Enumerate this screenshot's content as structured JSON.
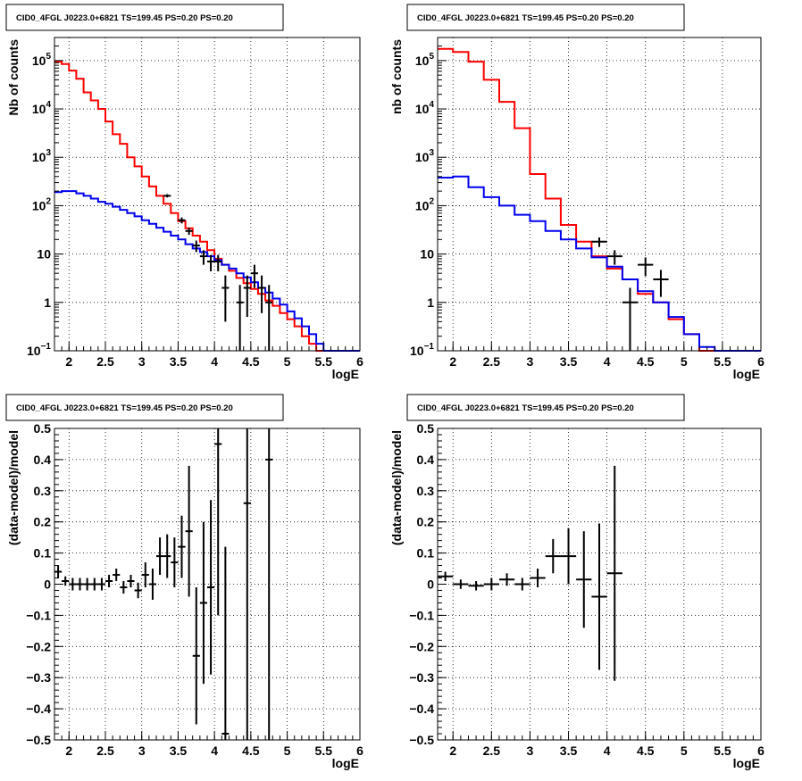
{
  "chart_data": [
    {
      "type": "histogram",
      "title": "CID0_4FGL J0223.0+6821 TS=199.45 PS=0.20 PS=0.20",
      "xlabel": "logE",
      "ylabel": "Nb of counts",
      "xlim": [
        1.8,
        6.0
      ],
      "ylim": [
        0.1,
        300000
      ],
      "yscale": "log",
      "grid": true,
      "xticks": [
        "2",
        "2.5",
        "3",
        "3.5",
        "4",
        "4.5",
        "5",
        "5.5",
        "6"
      ],
      "yticks": [
        {
          "value": 0.1,
          "base": "10",
          "exp": "−1"
        },
        {
          "value": 1,
          "base": "1",
          "exp": ""
        },
        {
          "value": 10,
          "base": "10",
          "exp": ""
        },
        {
          "value": 100,
          "base": "10",
          "exp": "2"
        },
        {
          "value": 1000,
          "base": "10",
          "exp": "3"
        },
        {
          "value": 10000,
          "base": "10",
          "exp": "4"
        },
        {
          "value": 100000,
          "base": "10",
          "exp": "5"
        }
      ],
      "bin_edges": [
        1.8,
        1.9,
        2.0,
        2.1,
        2.2,
        2.3,
        2.4,
        2.5,
        2.6,
        2.7,
        2.8,
        2.9,
        3.0,
        3.1,
        3.2,
        3.3,
        3.4,
        3.5,
        3.6,
        3.7,
        3.8,
        3.9,
        4.0,
        4.1,
        4.2,
        4.3,
        4.4,
        4.5,
        4.6,
        4.7,
        4.8,
        4.9,
        5.0,
        5.1,
        5.2,
        5.3,
        5.4,
        5.5,
        5.6,
        5.7,
        5.8,
        5.9,
        6.0
      ],
      "series": [
        {
          "color": "#ff0000",
          "values": [
            95000,
            85000,
            62000,
            42000,
            22000,
            15000,
            10000,
            5500,
            3000,
            1900,
            1000,
            650,
            400,
            250,
            160,
            110,
            70,
            48,
            34,
            24,
            18,
            12,
            8,
            6,
            4.5,
            3.2,
            2.5,
            1.9,
            1.5,
            1.1,
            0.85,
            0.6,
            0.45,
            0.32,
            0.2,
            0.14,
            0.1,
            0.1,
            0.1,
            0.1,
            0.1,
            0.1
          ]
        },
        {
          "color": "#0000ee",
          "values": [
            190,
            200,
            200,
            180,
            160,
            140,
            120,
            110,
            95,
            82,
            70,
            60,
            50,
            42,
            35,
            29,
            24,
            20,
            16,
            13,
            11,
            9,
            7.5,
            6,
            5,
            4,
            3.3,
            2.6,
            2,
            1.6,
            1.2,
            0.9,
            0.65,
            0.47,
            0.32,
            0.22,
            0.14,
            0.1,
            0.1,
            0.1,
            0.1,
            0.1
          ]
        }
      ],
      "points": [
        {
          "x": 3.35,
          "y": 160,
          "yerr": [
            12,
            12
          ]
        },
        {
          "x": 3.55,
          "y": 50,
          "yerr": [
            7,
            7
          ]
        },
        {
          "x": 3.65,
          "y": 30,
          "yerr": [
            5,
            5
          ]
        },
        {
          "x": 3.75,
          "y": 15,
          "yerr": [
            4,
            4
          ]
        },
        {
          "x": 3.85,
          "y": 9,
          "yerr": [
            3,
            3
          ]
        },
        {
          "x": 3.95,
          "y": 7,
          "yerr": [
            2.6,
            2.6
          ]
        },
        {
          "x": 4.05,
          "y": 7,
          "yerr": [
            2.6,
            2.6
          ]
        },
        {
          "x": 4.15,
          "y": 2,
          "yerr": [
            1.6,
            1.6
          ]
        },
        {
          "x": 4.35,
          "y": 1,
          "yerr": [
            0.9,
            1.3
          ]
        },
        {
          "x": 4.45,
          "y": 2,
          "yerr": [
            1.5,
            1.6
          ]
        },
        {
          "x": 4.55,
          "y": 4,
          "yerr": [
            2,
            2
          ]
        },
        {
          "x": 4.65,
          "y": 2,
          "yerr": [
            1.4,
            1.6
          ]
        },
        {
          "x": 4.75,
          "y": 1,
          "yerr": [
            0.9,
            1.3
          ]
        }
      ]
    },
    {
      "type": "histogram",
      "title": "CID0_4FGL J0223.0+6821 TS=199.45 PS=0.20 PS=0.20",
      "xlabel": "logE",
      "ylabel": "nb of counts",
      "xlim": [
        1.8,
        6.0
      ],
      "ylim": [
        0.1,
        300000
      ],
      "yscale": "log",
      "grid": true,
      "xticks": [
        "2",
        "2.5",
        "3",
        "3.5",
        "4",
        "4.5",
        "5",
        "5.5",
        "6"
      ],
      "yticks": [
        {
          "value": 0.1,
          "base": "10",
          "exp": "−1"
        },
        {
          "value": 1,
          "base": "1",
          "exp": ""
        },
        {
          "value": 10,
          "base": "10",
          "exp": ""
        },
        {
          "value": 100,
          "base": "10",
          "exp": "2"
        },
        {
          "value": 1000,
          "base": "10",
          "exp": "3"
        },
        {
          "value": 10000,
          "base": "10",
          "exp": "4"
        },
        {
          "value": 100000,
          "base": "10",
          "exp": "5"
        }
      ],
      "bin_edges": [
        1.8,
        2.0,
        2.2,
        2.4,
        2.6,
        2.8,
        3.0,
        3.2,
        3.4,
        3.6,
        3.8,
        4.0,
        4.2,
        4.4,
        4.6,
        4.8,
        5.0,
        5.2,
        5.4,
        5.6,
        5.8,
        6.0
      ],
      "series": [
        {
          "color": "#ff0000",
          "values": [
            175000,
            150000,
            95000,
            40000,
            14000,
            4000,
            450,
            140,
            40,
            18,
            9,
            5,
            3,
            1.5,
            1.0,
            0.45,
            0.22,
            0.1,
            0.1,
            0.1,
            0.1
          ]
        },
        {
          "color": "#0000ee",
          "values": [
            380,
            400,
            240,
            150,
            100,
            65,
            48,
            30,
            20,
            13,
            8.5,
            5.5,
            3,
            1.7,
            1.0,
            0.5,
            0.22,
            0.12,
            0.1,
            0.1,
            0.1
          ]
        }
      ],
      "points": [
        {
          "x": 3.9,
          "y": 18,
          "yerr": [
            4,
            4
          ]
        },
        {
          "x": 4.1,
          "y": 9,
          "yerr": [
            3,
            3
          ]
        },
        {
          "x": 4.3,
          "y": 1,
          "yerr": [
            0.9,
            1.0
          ]
        },
        {
          "x": 4.5,
          "y": 6,
          "yerr": [
            2.5,
            2.5
          ]
        },
        {
          "x": 4.7,
          "y": 3,
          "yerr": [
            1.7,
            1.7
          ]
        }
      ]
    },
    {
      "type": "scatter",
      "title": "CID0_4FGL J0223.0+6821 TS=199.45 PS=0.20 PS=0.20",
      "xlabel": "logE",
      "ylabel": "(data-model)/model",
      "xlim": [
        1.8,
        6.0
      ],
      "ylim": [
        -0.5,
        0.5
      ],
      "yscale": "linear",
      "grid": true,
      "xticks": [
        "2",
        "2.5",
        "3",
        "3.5",
        "4",
        "4.5",
        "5",
        "5.5",
        "6"
      ],
      "yticks": [
        {
          "value": -0.5,
          "label": "−0.5"
        },
        {
          "value": -0.4,
          "label": "−0.4"
        },
        {
          "value": -0.3,
          "label": "−0.3"
        },
        {
          "value": -0.2,
          "label": "−0.2"
        },
        {
          "value": -0.1,
          "label": "−0.1"
        },
        {
          "value": 0,
          "label": "0"
        },
        {
          "value": 0.1,
          "label": "0.1"
        },
        {
          "value": 0.2,
          "label": "0.2"
        },
        {
          "value": 0.3,
          "label": "0.3"
        },
        {
          "value": 0.4,
          "label": "0.4"
        },
        {
          "value": 0.5,
          "label": "0.5"
        }
      ],
      "xerr": 0.05,
      "points": [
        {
          "x": 1.85,
          "y": 0.04,
          "yerr": [
            0.02,
            0.02
          ]
        },
        {
          "x": 1.95,
          "y": 0.01,
          "yerr": [
            0.015,
            0.015
          ]
        },
        {
          "x": 2.05,
          "y": 0.0,
          "yerr": [
            0.02,
            0.02
          ]
        },
        {
          "x": 2.15,
          "y": 0.0,
          "yerr": [
            0.02,
            0.02
          ]
        },
        {
          "x": 2.25,
          "y": 0.0,
          "yerr": [
            0.02,
            0.02
          ]
        },
        {
          "x": 2.35,
          "y": 0.0,
          "yerr": [
            0.02,
            0.02
          ]
        },
        {
          "x": 2.45,
          "y": 0.0,
          "yerr": [
            0.02,
            0.02
          ]
        },
        {
          "x": 2.55,
          "y": 0.01,
          "yerr": [
            0.02,
            0.02
          ]
        },
        {
          "x": 2.65,
          "y": 0.03,
          "yerr": [
            0.02,
            0.02
          ]
        },
        {
          "x": 2.75,
          "y": -0.01,
          "yerr": [
            0.02,
            0.02
          ]
        },
        {
          "x": 2.85,
          "y": 0.01,
          "yerr": [
            0.02,
            0.02
          ]
        },
        {
          "x": 2.95,
          "y": -0.02,
          "yerr": [
            0.025,
            0.025
          ]
        },
        {
          "x": 3.05,
          "y": 0.03,
          "yerr": [
            0.04,
            0.04
          ]
        },
        {
          "x": 3.15,
          "y": 0.0,
          "yerr": [
            0.05,
            0.05
          ]
        },
        {
          "x": 3.25,
          "y": 0.09,
          "yerr": [
            0.06,
            0.06
          ]
        },
        {
          "x": 3.35,
          "y": 0.09,
          "yerr": [
            0.07,
            0.07
          ]
        },
        {
          "x": 3.45,
          "y": 0.07,
          "yerr": [
            0.08,
            0.08
          ]
        },
        {
          "x": 3.55,
          "y": 0.12,
          "yerr": [
            0.1,
            0.1
          ]
        },
        {
          "x": 3.65,
          "y": 0.17,
          "yerr": [
            0.21,
            0.21
          ]
        },
        {
          "x": 3.75,
          "y": -0.23,
          "yerr": [
            0.22,
            0.22
          ]
        },
        {
          "x": 3.85,
          "y": -0.06,
          "yerr": [
            0.26,
            0.26
          ]
        },
        {
          "x": 3.95,
          "y": -0.01,
          "yerr": [
            0.28,
            0.28
          ]
        },
        {
          "x": 4.05,
          "y": 0.45,
          "yerr": [
            0.55,
            0.55
          ]
        },
        {
          "x": 4.15,
          "y": -0.48,
          "yerr": [
            0.6,
            0.6
          ]
        },
        {
          "x": 4.45,
          "y": 0.26,
          "yerr": [
            0.8,
            0.8
          ]
        },
        {
          "x": 4.75,
          "y": 0.4,
          "yerr": [
            1.0,
            1.0
          ]
        }
      ]
    },
    {
      "type": "scatter",
      "title": "CID0_4FGL J0223.0+6821 TS=199.45 PS=0.20 PS=0.20",
      "xlabel": "logE",
      "ylabel": "(data-model)/model",
      "xlim": [
        1.8,
        6.0
      ],
      "ylim": [
        -0.5,
        0.5
      ],
      "yscale": "linear",
      "grid": true,
      "xticks": [
        "2",
        "2.5",
        "3",
        "3.5",
        "4",
        "4.5",
        "5",
        "5.5",
        "6"
      ],
      "yticks": [
        {
          "value": -0.5,
          "label": "−0.5"
        },
        {
          "value": -0.4,
          "label": "−0.4"
        },
        {
          "value": -0.3,
          "label": "−0.3"
        },
        {
          "value": -0.2,
          "label": "−0.2"
        },
        {
          "value": -0.1,
          "label": "−0.1"
        },
        {
          "value": 0,
          "label": "0"
        },
        {
          "value": 0.1,
          "label": "0.1"
        },
        {
          "value": 0.2,
          "label": "0.2"
        },
        {
          "value": 0.3,
          "label": "0.3"
        },
        {
          "value": 0.4,
          "label": "0.4"
        },
        {
          "value": 0.5,
          "label": "0.5"
        }
      ],
      "xerr": 0.1,
      "points": [
        {
          "x": 1.9,
          "y": 0.025,
          "yerr": [
            0.015,
            0.015
          ]
        },
        {
          "x": 2.1,
          "y": 0.0,
          "yerr": [
            0.015,
            0.015
          ]
        },
        {
          "x": 2.3,
          "y": -0.005,
          "yerr": [
            0.015,
            0.015
          ]
        },
        {
          "x": 2.5,
          "y": 0.0,
          "yerr": [
            0.02,
            0.02
          ]
        },
        {
          "x": 2.7,
          "y": 0.015,
          "yerr": [
            0.02,
            0.02
          ]
        },
        {
          "x": 2.9,
          "y": 0.0,
          "yerr": [
            0.02,
            0.02
          ]
        },
        {
          "x": 3.1,
          "y": 0.02,
          "yerr": [
            0.03,
            0.03
          ]
        },
        {
          "x": 3.3,
          "y": 0.09,
          "yerr": [
            0.055,
            0.055
          ]
        },
        {
          "x": 3.5,
          "y": 0.09,
          "yerr": [
            0.09,
            0.09
          ]
        },
        {
          "x": 3.7,
          "y": 0.015,
          "yerr": [
            0.155,
            0.155
          ]
        },
        {
          "x": 3.9,
          "y": -0.04,
          "yerr": [
            0.235,
            0.235
          ]
        },
        {
          "x": 4.1,
          "y": 0.035,
          "yerr": [
            0.345,
            0.345
          ]
        }
      ]
    }
  ]
}
